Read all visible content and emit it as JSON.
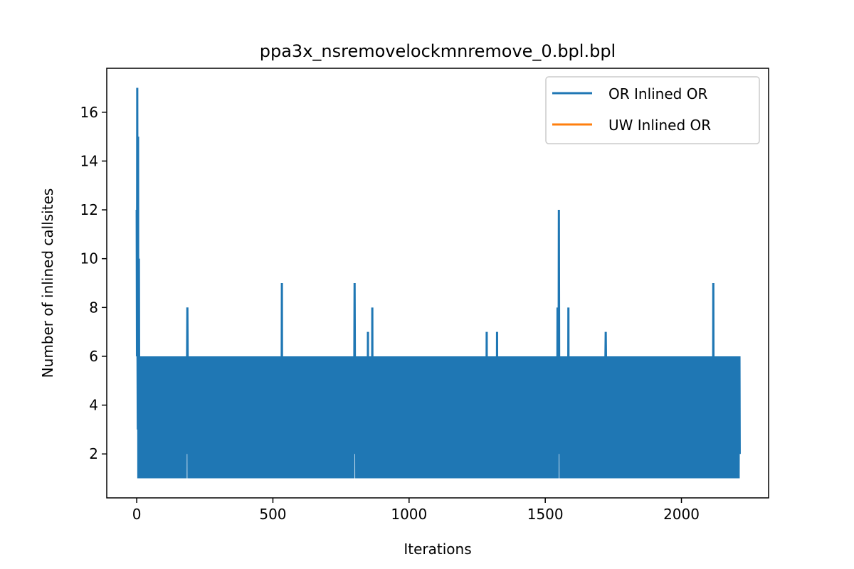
{
  "chart_data": {
    "type": "line",
    "title": "ppa3x_nsremovelockmnremove_0.bpl.bpl",
    "xlabel": "Iterations",
    "ylabel": "Number of inlined callsites",
    "xlim": [
      -110,
      2320
    ],
    "ylim": [
      0.2,
      17.8
    ],
    "xticks": [
      0,
      500,
      1000,
      1500,
      2000
    ],
    "yticks": [
      2,
      4,
      6,
      8,
      10,
      12,
      14,
      16
    ],
    "legend_position": "top-right",
    "grid": false,
    "x_count": 2215,
    "base_pattern": [
      1,
      6,
      2,
      6,
      3,
      6,
      1,
      6,
      2,
      5,
      1,
      6,
      4,
      6,
      2,
      6,
      1,
      6,
      3,
      6
    ],
    "spikes": [
      {
        "x": 0,
        "y": 12
      },
      {
        "x": 2,
        "y": 17
      },
      {
        "x": 5,
        "y": 15
      },
      {
        "x": 8,
        "y": 10
      },
      {
        "x": 186,
        "y": 8
      },
      {
        "x": 533,
        "y": 9
      },
      {
        "x": 800,
        "y": 9
      },
      {
        "x": 849,
        "y": 7
      },
      {
        "x": 865,
        "y": 8
      },
      {
        "x": 1285,
        "y": 7
      },
      {
        "x": 1323,
        "y": 7
      },
      {
        "x": 1545,
        "y": 8
      },
      {
        "x": 1550,
        "y": 12
      },
      {
        "x": 1585,
        "y": 8
      },
      {
        "x": 1722,
        "y": 7
      },
      {
        "x": 2117,
        "y": 9
      }
    ],
    "series": [
      {
        "name": "OR Inlined OR",
        "color": "#1f77b4"
      },
      {
        "name": "UW Inlined OR",
        "color": "#ff7f0e"
      }
    ]
  }
}
